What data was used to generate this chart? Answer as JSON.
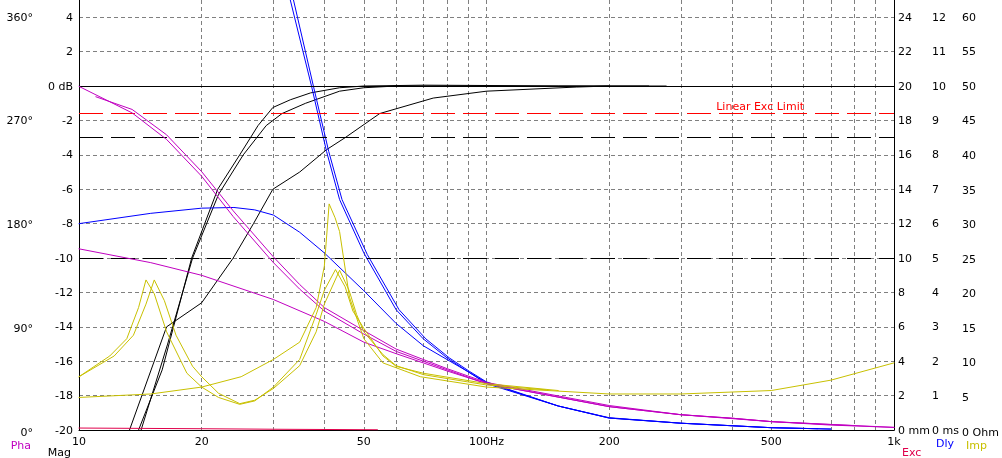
{
  "chart_data": [
    {
      "type": "line",
      "ylabel": "Mag",
      "y2label": "Exc",
      "y3label": "Dly",
      "log": "x",
      "xlim": [
        10,
        1000
      ],
      "xticks": [
        10,
        20,
        {
          "value": 30,
          "label": null
        },
        {
          "value": 40,
          "label": null
        },
        50,
        {
          "value": 60,
          "label": null
        },
        {
          "value": 70,
          "label": null
        },
        {
          "value": 80,
          "label": null
        },
        {
          "value": 90,
          "label": null
        },
        {
          "value": 100,
          "label": "100Hz"
        },
        200,
        {
          "value": 300,
          "label": null
        },
        {
          "value": 400,
          "label": null
        },
        500,
        {
          "value": 600,
          "label": null
        },
        {
          "value": 700,
          "label": null
        },
        {
          "value": 800,
          "label": null
        },
        {
          "value": 900,
          "label": null
        },
        {
          "value": 1000,
          "label": "1k"
        }
      ],
      "ylim": [
        -20,
        5
      ],
      "yticks": [
        -20,
        -18,
        -16,
        -14,
        -12,
        -10,
        -8,
        -6,
        -4,
        -2,
        {
          "value": 0,
          "label": "0 dB"
        },
        2,
        4
      ],
      "y2lim": [
        0,
        25
      ],
      "y2ticks": [
        {
          "value": 0,
          "label": "0 mm"
        },
        2,
        4,
        6,
        8,
        10,
        12,
        14,
        16,
        18,
        20,
        22,
        24
      ],
      "y3lim": [
        0,
        12.5
      ],
      "y3ticks": [
        {
          "value": 0,
          "label": "0 ms"
        },
        1,
        2,
        3,
        4,
        5,
        6,
        7,
        8,
        9,
        10,
        11,
        12
      ],
      "grid": true,
      "marker": "none",
      "line_style": "solid",
      "ref_lines": [
        {
          "axis": "y",
          "value": 0,
          "label": null,
          "color": "#000000",
          "line_style": "solid"
        },
        {
          "axis": "y",
          "value": -3,
          "label": null,
          "color": "#000000",
          "line_style": "dashed"
        },
        {
          "axis": "y",
          "value": -10,
          "label": null,
          "color": "#000000",
          "line_style": "dashed"
        },
        {
          "axis": "y2",
          "value": 18.4,
          "label": "Linear Exc Limit",
          "color": "#ff0000",
          "line_style": "dashed"
        }
      ],
      "series": [
        {
          "color": "#000000",
          "x": [
            14.0,
            16,
            18.9,
            21.9,
            24.8,
            27.5,
            29.9,
            33,
            37,
            43.6,
            50,
            70,
            100,
            150,
            276
          ],
          "values": [
            -20,
            -16.5,
            -10,
            -6,
            -4,
            -2.3,
            -1.25,
            -0.8,
            -0.4,
            -0.1,
            0,
            0.05,
            0.03,
            0,
            0
          ]
        },
        {
          "color": "#000000",
          "x": [
            14.2,
            16.5,
            19,
            22,
            25.3,
            28.8,
            31.5,
            36,
            43.6,
            50,
            60,
            100,
            250
          ],
          "values": [
            -20,
            -15,
            -10,
            -6.3,
            -4,
            -2.3,
            -1.6,
            -1.0,
            -0.3,
            -0.1,
            0,
            0,
            0
          ]
        },
        {
          "color": "#000000",
          "x": [
            13.3,
            16.4,
            20,
            23.9,
            26.8,
            29.9,
            34.8,
            40.5,
            45,
            54.7,
            74,
            100,
            166,
            200
          ],
          "values": [
            -20,
            -14,
            -12.6,
            -10,
            -8,
            -6,
            -5.0,
            -3.7,
            -3.0,
            -1.6,
            -0.7,
            -0.3,
            -0.06,
            0
          ]
        },
        {
          "axis": "y3",
          "color": "#0000ff",
          "x": [
            33.0,
            37.2,
            40.5,
            43.6,
            50,
            60,
            70,
            80,
            90,
            100,
            150,
            200,
            300,
            500,
            700
          ],
          "values": [
            12.5,
            10,
            8.1,
            6.7,
            5.15,
            3.5,
            2.65,
            2.1,
            1.7,
            1.35,
            0.7,
            0.35,
            0.2,
            0.07,
            0.03
          ]
        },
        {
          "axis": "y3",
          "color": "#0000ff",
          "x": [
            33.6,
            37.6,
            41,
            44.2,
            51,
            61,
            71,
            81,
            91,
            100,
            150,
            200,
            300,
            500,
            650
          ],
          "values": [
            12.5,
            10,
            8.1,
            6.7,
            5.1,
            3.5,
            2.65,
            2.1,
            1.7,
            1.4,
            0.7,
            0.35,
            0.2,
            0.07,
            0.04
          ]
        },
        {
          "axis": "y3",
          "color": "#0000ff",
          "x": [
            10,
            15,
            20,
            24,
            27,
            30,
            34.8,
            40,
            50,
            60,
            70,
            90,
            100,
            150,
            200,
            300,
            500,
            700
          ],
          "values": [
            6.0,
            6.3,
            6.45,
            6.47,
            6.4,
            6.25,
            5.75,
            5.15,
            4.05,
            3.1,
            2.45,
            1.7,
            1.38,
            0.7,
            0.36,
            0.2,
            0.07,
            0.03
          ]
        },
        {
          "axis": "y2",
          "color": "#e0004b",
          "x": [
            10,
            20,
            30,
            54
          ],
          "values": [
            0.12,
            0.08,
            0.05,
            0.02
          ]
        }
      ]
    },
    {
      "type": "line",
      "ylabel": "Pha",
      "y2label": "Imp",
      "log": "x",
      "xlim": [
        10,
        1000
      ],
      "tick_labels": "y",
      "ylim": [
        0,
        360
      ],
      "yticks": [
        {
          "value": 0,
          "label": "0°"
        },
        {
          "value": 90,
          "label": "90°"
        },
        {
          "value": 180,
          "label": "180°"
        },
        {
          "value": 270,
          "label": "270°"
        },
        {
          "value": 360,
          "label": "360°"
        }
      ],
      "y2lim": [
        0,
        60
      ],
      "y2ticks": [
        {
          "value": 0,
          "label": "0 Ohm"
        },
        5,
        10,
        15,
        20,
        25,
        30,
        35,
        40,
        45,
        50,
        55,
        60
      ],
      "marker": "none",
      "line_style": "solid",
      "series": [
        {
          "color": "#c000c0",
          "x": [
            10,
            13.5,
            16.4,
            20,
            23.9,
            30,
            34.8,
            40,
            50,
            60,
            80,
            100,
            200,
            300,
            400,
            500,
            700,
            1000
          ],
          "values": [
            300,
            277,
            254,
            222,
            187,
            147,
            124,
            105,
            85,
            70,
            54,
            42,
            22,
            15,
            12,
            9,
            6,
            4
          ]
        },
        {
          "color": "#c000c0",
          "x": [
            11,
            13.5,
            16.4,
            20,
            23.9,
            30,
            34.8,
            40,
            50,
            60,
            80,
            100,
            200,
            300,
            400,
            500,
            800
          ],
          "values": [
            291,
            280,
            258,
            226,
            192,
            152,
            128,
            108,
            88,
            72,
            55,
            43,
            23,
            15,
            12,
            9,
            5.5
          ]
        },
        {
          "color": "#c000c0",
          "x": [
            10,
            15,
            20,
            30,
            40,
            50,
            60,
            80,
            100,
            200,
            300,
            500,
            1000
          ],
          "values": [
            159,
            147,
            136,
            115,
            96,
            78,
            68,
            53,
            42,
            22,
            15,
            9,
            4
          ]
        },
        {
          "axis": "y2",
          "color": "#c8c000",
          "x": [
            10,
            11.9,
            13.1,
            14,
            14.6,
            15.3,
            16.4,
            18.4,
            20,
            22,
            24.8,
            27,
            30,
            34.8,
            38.2,
            40,
            42.6,
            45,
            47,
            50,
            55.7,
            60,
            70,
            100,
            150
          ],
          "values": [
            8.0,
            11,
            13.5,
            18,
            22,
            20,
            14.5,
            8.5,
            6.5,
            5,
            4.0,
            4.5,
            6.5,
            10.5,
            17,
            20.5,
            23.5,
            21,
            17.5,
            15,
            11,
            9.5,
            8.5,
            7,
            6.0
          ]
        },
        {
          "axis": "y2",
          "color": "#c8c000",
          "x": [
            10,
            12.2,
            13.6,
            14.6,
            15.3,
            16.2,
            17.3,
            19,
            20,
            22,
            24.8,
            27,
            30,
            34.8,
            38.2,
            40,
            43.6,
            46,
            48,
            50,
            55.7,
            60,
            70,
            100,
            140
          ],
          "values": [
            8,
            11,
            14,
            18.5,
            22,
            19,
            14,
            9.5,
            8,
            5.6,
            4.1,
            4.6,
            6.3,
            9.6,
            14.5,
            18.5,
            23.4,
            20.5,
            17,
            14.5,
            11.2,
            9.6,
            8.3,
            6.8,
            6.1
          ]
        },
        {
          "axis": "y2",
          "color": "#c8c000",
          "x": [
            10,
            15,
            20,
            25,
            30,
            34.8,
            38.2,
            40,
            41.1,
            42.5,
            43.6,
            46.1,
            50,
            55.7,
            68.8,
            100,
            200,
            300,
            500,
            700,
            1000
          ],
          "values": [
            5,
            5.5,
            6.5,
            8,
            10.5,
            13,
            18,
            24,
            33,
            31,
            29,
            19.5,
            13.5,
            10,
            8,
            6.5,
            5.5,
            5.5,
            6,
            7.5,
            10
          ]
        }
      ]
    }
  ]
}
